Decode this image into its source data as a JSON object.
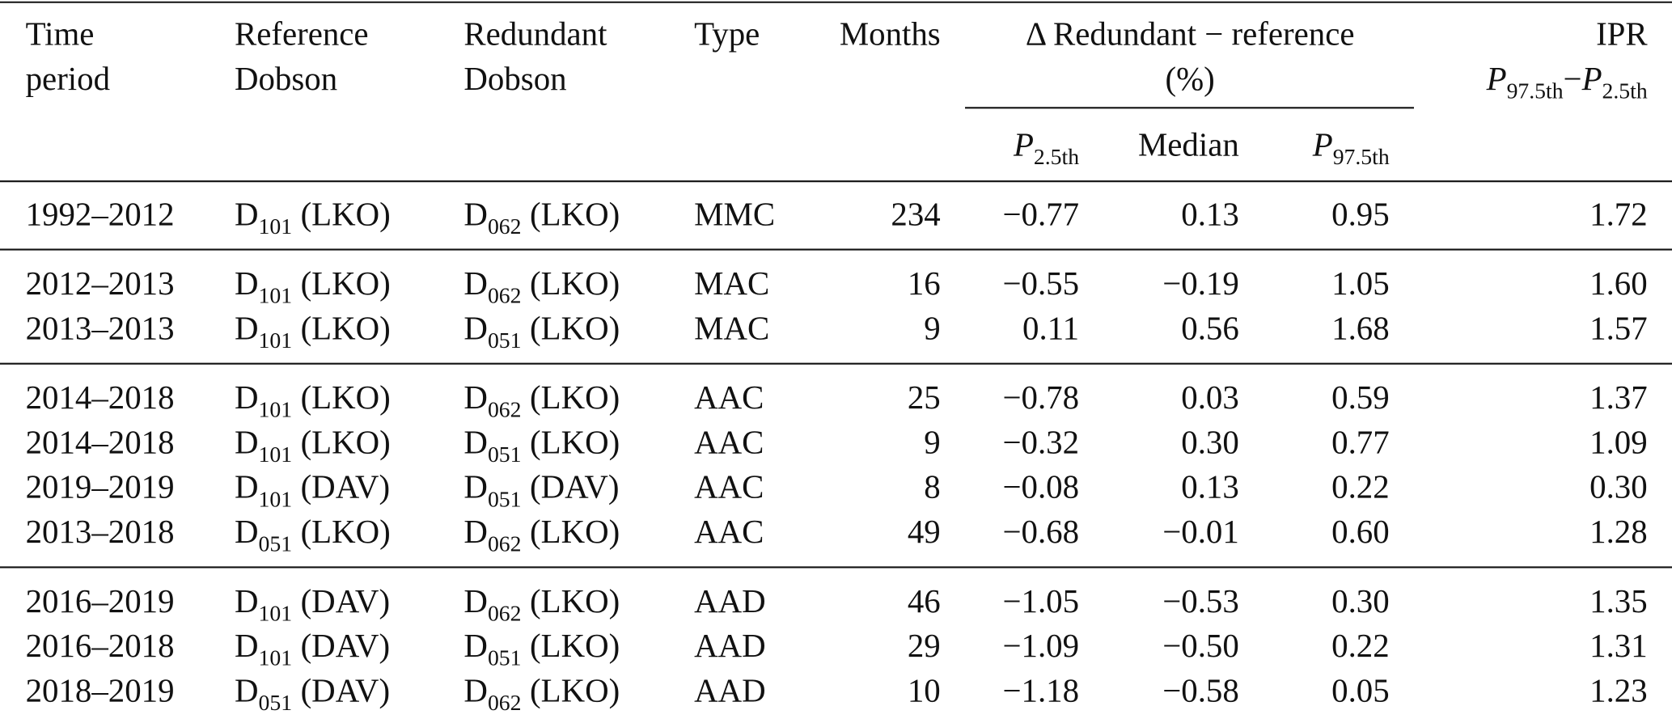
{
  "header": {
    "time_period": [
      "Time",
      "period"
    ],
    "reference": [
      "Reference",
      "Dobson"
    ],
    "redundant": [
      "Redundant",
      "Dobson"
    ],
    "type": "Type",
    "months": "Months",
    "delta": [
      "Δ Redundant − reference",
      "(%)"
    ],
    "p2_5": {
      "base": "P",
      "sub": "2.5th"
    },
    "median": "Median",
    "p97_5": {
      "base": "P",
      "sub": "97.5th"
    },
    "ipr": {
      "label": "IPR",
      "a": {
        "base": "P",
        "sub": "97.5th"
      },
      "op": "−",
      "b": {
        "base": "P",
        "sub": "2.5th"
      }
    }
  },
  "groups": [
    [
      {
        "period": "1992–2012",
        "reference": {
          "base": "D",
          "sub": "101",
          "site": "(LKO)"
        },
        "redundant": {
          "base": "D",
          "sub": "062",
          "site": "(LKO)"
        },
        "type": "MMC",
        "months": "234",
        "p2_5": "−0.77",
        "median": "0.13",
        "p97_5": "0.95",
        "ipr": "1.72"
      }
    ],
    [
      {
        "period": "2012–2013",
        "reference": {
          "base": "D",
          "sub": "101",
          "site": "(LKO)"
        },
        "redundant": {
          "base": "D",
          "sub": "062",
          "site": "(LKO)"
        },
        "type": "MAC",
        "months": "16",
        "p2_5": "−0.55",
        "median": "−0.19",
        "p97_5": "1.05",
        "ipr": "1.60"
      },
      {
        "period": "2013–2013",
        "reference": {
          "base": "D",
          "sub": "101",
          "site": "(LKO)"
        },
        "redundant": {
          "base": "D",
          "sub": "051",
          "site": "(LKO)"
        },
        "type": "MAC",
        "months": "9",
        "p2_5": "0.11",
        "median": "0.56",
        "p97_5": "1.68",
        "ipr": "1.57"
      }
    ],
    [
      {
        "period": "2014–2018",
        "reference": {
          "base": "D",
          "sub": "101",
          "site": "(LKO)"
        },
        "redundant": {
          "base": "D",
          "sub": "062",
          "site": "(LKO)"
        },
        "type": "AAC",
        "months": "25",
        "p2_5": "−0.78",
        "median": "0.03",
        "p97_5": "0.59",
        "ipr": "1.37"
      },
      {
        "period": "2014–2018",
        "reference": {
          "base": "D",
          "sub": "101",
          "site": "(LKO)"
        },
        "redundant": {
          "base": "D",
          "sub": "051",
          "site": "(LKO)"
        },
        "type": "AAC",
        "months": "9",
        "p2_5": "−0.32",
        "median": "0.30",
        "p97_5": "0.77",
        "ipr": "1.09"
      },
      {
        "period": "2019–2019",
        "reference": {
          "base": "D",
          "sub": "101",
          "site": "(DAV)"
        },
        "redundant": {
          "base": "D",
          "sub": "051",
          "site": "(DAV)"
        },
        "type": "AAC",
        "months": "8",
        "p2_5": "−0.08",
        "median": "0.13",
        "p97_5": "0.22",
        "ipr": "0.30"
      },
      {
        "period": "2013–2018",
        "reference": {
          "base": "D",
          "sub": "051",
          "site": "(LKO)"
        },
        "redundant": {
          "base": "D",
          "sub": "062",
          "site": "(LKO)"
        },
        "type": "AAC",
        "months": "49",
        "p2_5": "−0.68",
        "median": "−0.01",
        "p97_5": "0.60",
        "ipr": "1.28"
      }
    ],
    [
      {
        "period": "2016–2019",
        "reference": {
          "base": "D",
          "sub": "101",
          "site": "(DAV)"
        },
        "redundant": {
          "base": "D",
          "sub": "062",
          "site": "(LKO)"
        },
        "type": "AAD",
        "months": "46",
        "p2_5": "−1.05",
        "median": "−0.53",
        "p97_5": "0.30",
        "ipr": "1.35"
      },
      {
        "period": "2016–2018",
        "reference": {
          "base": "D",
          "sub": "101",
          "site": "(DAV)"
        },
        "redundant": {
          "base": "D",
          "sub": "051",
          "site": "(LKO)"
        },
        "type": "AAD",
        "months": "29",
        "p2_5": "−1.09",
        "median": "−0.50",
        "p97_5": "0.22",
        "ipr": "1.31"
      },
      {
        "period": "2018–2019",
        "reference": {
          "base": "D",
          "sub": "051",
          "site": "(DAV)"
        },
        "redundant": {
          "base": "D",
          "sub": "062",
          "site": "(LKO)"
        },
        "type": "AAD",
        "months": "10",
        "p2_5": "−1.18",
        "median": "−0.58",
        "p97_5": "0.05",
        "ipr": "1.23"
      }
    ]
  ]
}
